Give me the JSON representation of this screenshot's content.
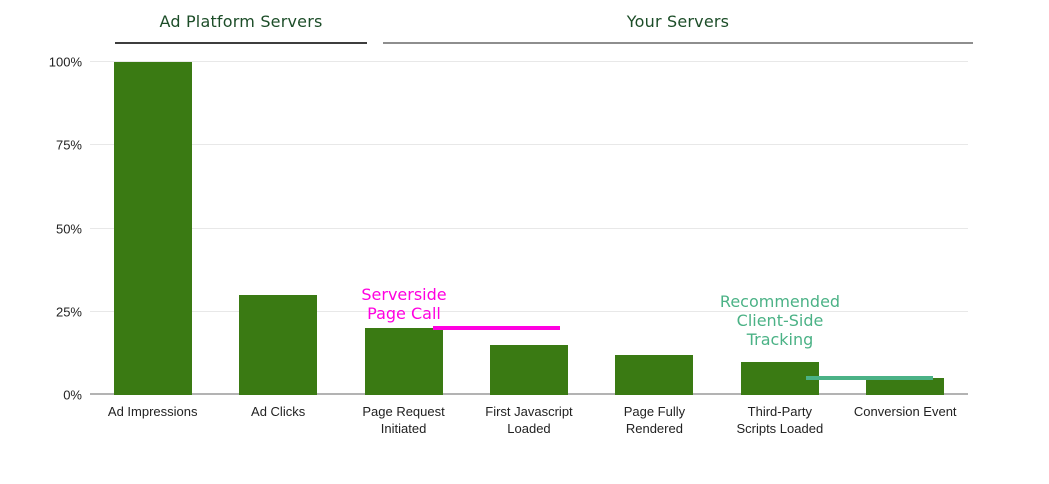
{
  "chart_data": {
    "type": "bar",
    "title": "",
    "xlabel": "",
    "ylabel": "",
    "unit": "%",
    "ylim": [
      0,
      100
    ],
    "grid": true,
    "legend_position": "none",
    "bar_color": "#3a7a13",
    "gridline_color": "#e8e8e8",
    "baseline_color": "#b3b3b3",
    "axis_text_color": "#222222",
    "yticks": [
      {
        "value": 0,
        "label": "0%"
      },
      {
        "value": 25,
        "label": "25%"
      },
      {
        "value": 50,
        "label": "50%"
      },
      {
        "value": 75,
        "label": "75%"
      },
      {
        "value": 100,
        "label": "100%"
      }
    ],
    "categories": [
      "Ad Impressions",
      "Ad Clicks",
      "Page Request Initiated",
      "First Javascript Loaded",
      "Page Fully Rendered",
      "Third-Party Scripts Loaded",
      "Conversion Event"
    ],
    "category_label_lines": [
      [
        "Ad Impressions"
      ],
      [
        "Ad Clicks"
      ],
      [
        "Page Request",
        "Initiated"
      ],
      [
        "First Javascript",
        "Loaded"
      ],
      [
        "Page Fully",
        "Rendered"
      ],
      [
        "Third-Party",
        "Scripts Loaded"
      ],
      [
        "Conversion Event"
      ]
    ],
    "values": [
      100,
      30,
      20,
      15,
      12,
      10,
      5
    ],
    "groups": [
      {
        "label": "Ad Platform Servers",
        "category_span": [
          0,
          1
        ],
        "text_color": "#1c4d28",
        "underline_color": "#3d3d3d"
      },
      {
        "label": "Your Servers",
        "category_span": [
          2,
          6
        ],
        "text_color": "#1c4d28",
        "underline_color": "#8e8e8e"
      }
    ],
    "annotations": [
      {
        "id": "serverside-page-call",
        "lines": [
          "Serverside",
          "Page Call"
        ],
        "color": "#ff00e0",
        "target_category": "Page Request Initiated",
        "marker_value": 20
      },
      {
        "id": "recommended-client-side-tracking",
        "lines": [
          "Recommended",
          "Client-Side",
          "Tracking"
        ],
        "color": "#4bb286",
        "target_category": "Third-Party Scripts Loaded",
        "marker_value": 5
      }
    ]
  }
}
